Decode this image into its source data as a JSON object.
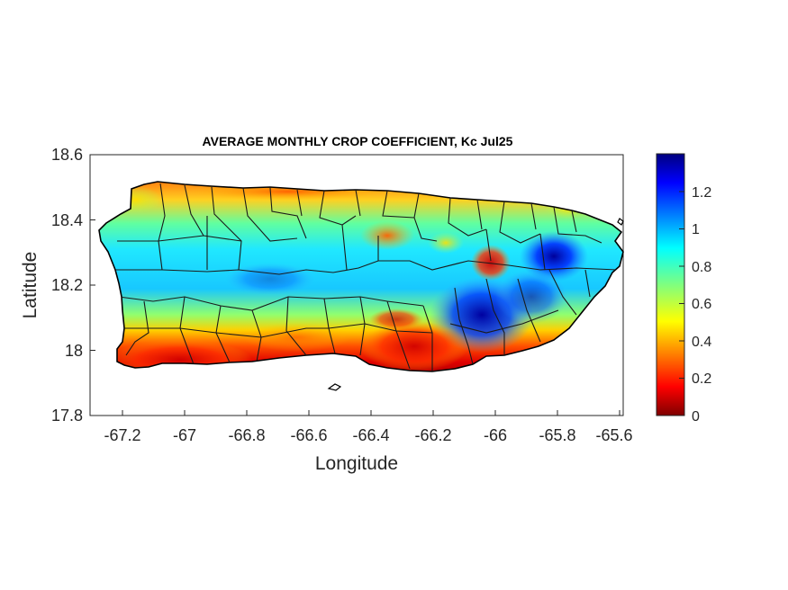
{
  "map": {
    "title": "AVERAGE MONTHLY CROP COEFFICIENT, Kc Jul25",
    "xlabel": "Longitude",
    "ylabel": "Latitude",
    "xlim": [
      -67.3,
      -65.58
    ],
    "ylim": [
      17.8,
      18.6
    ],
    "xticks": [
      "-67.2",
      "-67",
      "-66.8",
      "-66.6",
      "-66.4",
      "-66.2",
      "-66",
      "-65.8",
      "-65.6"
    ],
    "xtick_values": [
      -67.2,
      -67.0,
      -66.8,
      -66.6,
      -66.4,
      -66.2,
      -66.0,
      -65.8,
      -65.6
    ],
    "yticks": [
      "18.6",
      "18.4",
      "18.2",
      "18"
    ],
    "ytick_values": [
      18.6,
      18.4,
      18.2,
      18.0
    ],
    "ymin_label": "17.8",
    "colormap": "jet",
    "colorbar": {
      "ticks": [
        "1.2",
        "1",
        "0.8",
        "0.6",
        "0.4",
        "0.2",
        "0"
      ],
      "tick_values": [
        1.2,
        1.0,
        0.8,
        0.6,
        0.4,
        0.2,
        0.0
      ],
      "range": [
        0,
        1.4
      ]
    },
    "colors": {
      "low": "#7f0000",
      "high": "#00007f",
      "boundary": "#000000",
      "axis": "#262626"
    },
    "region": "Puerto Rico",
    "features": {
      "south_coast_low_kc": "red",
      "north_coast_mid_kc": "orange",
      "interior": "cyan",
      "east_high_kc": "blue"
    }
  }
}
